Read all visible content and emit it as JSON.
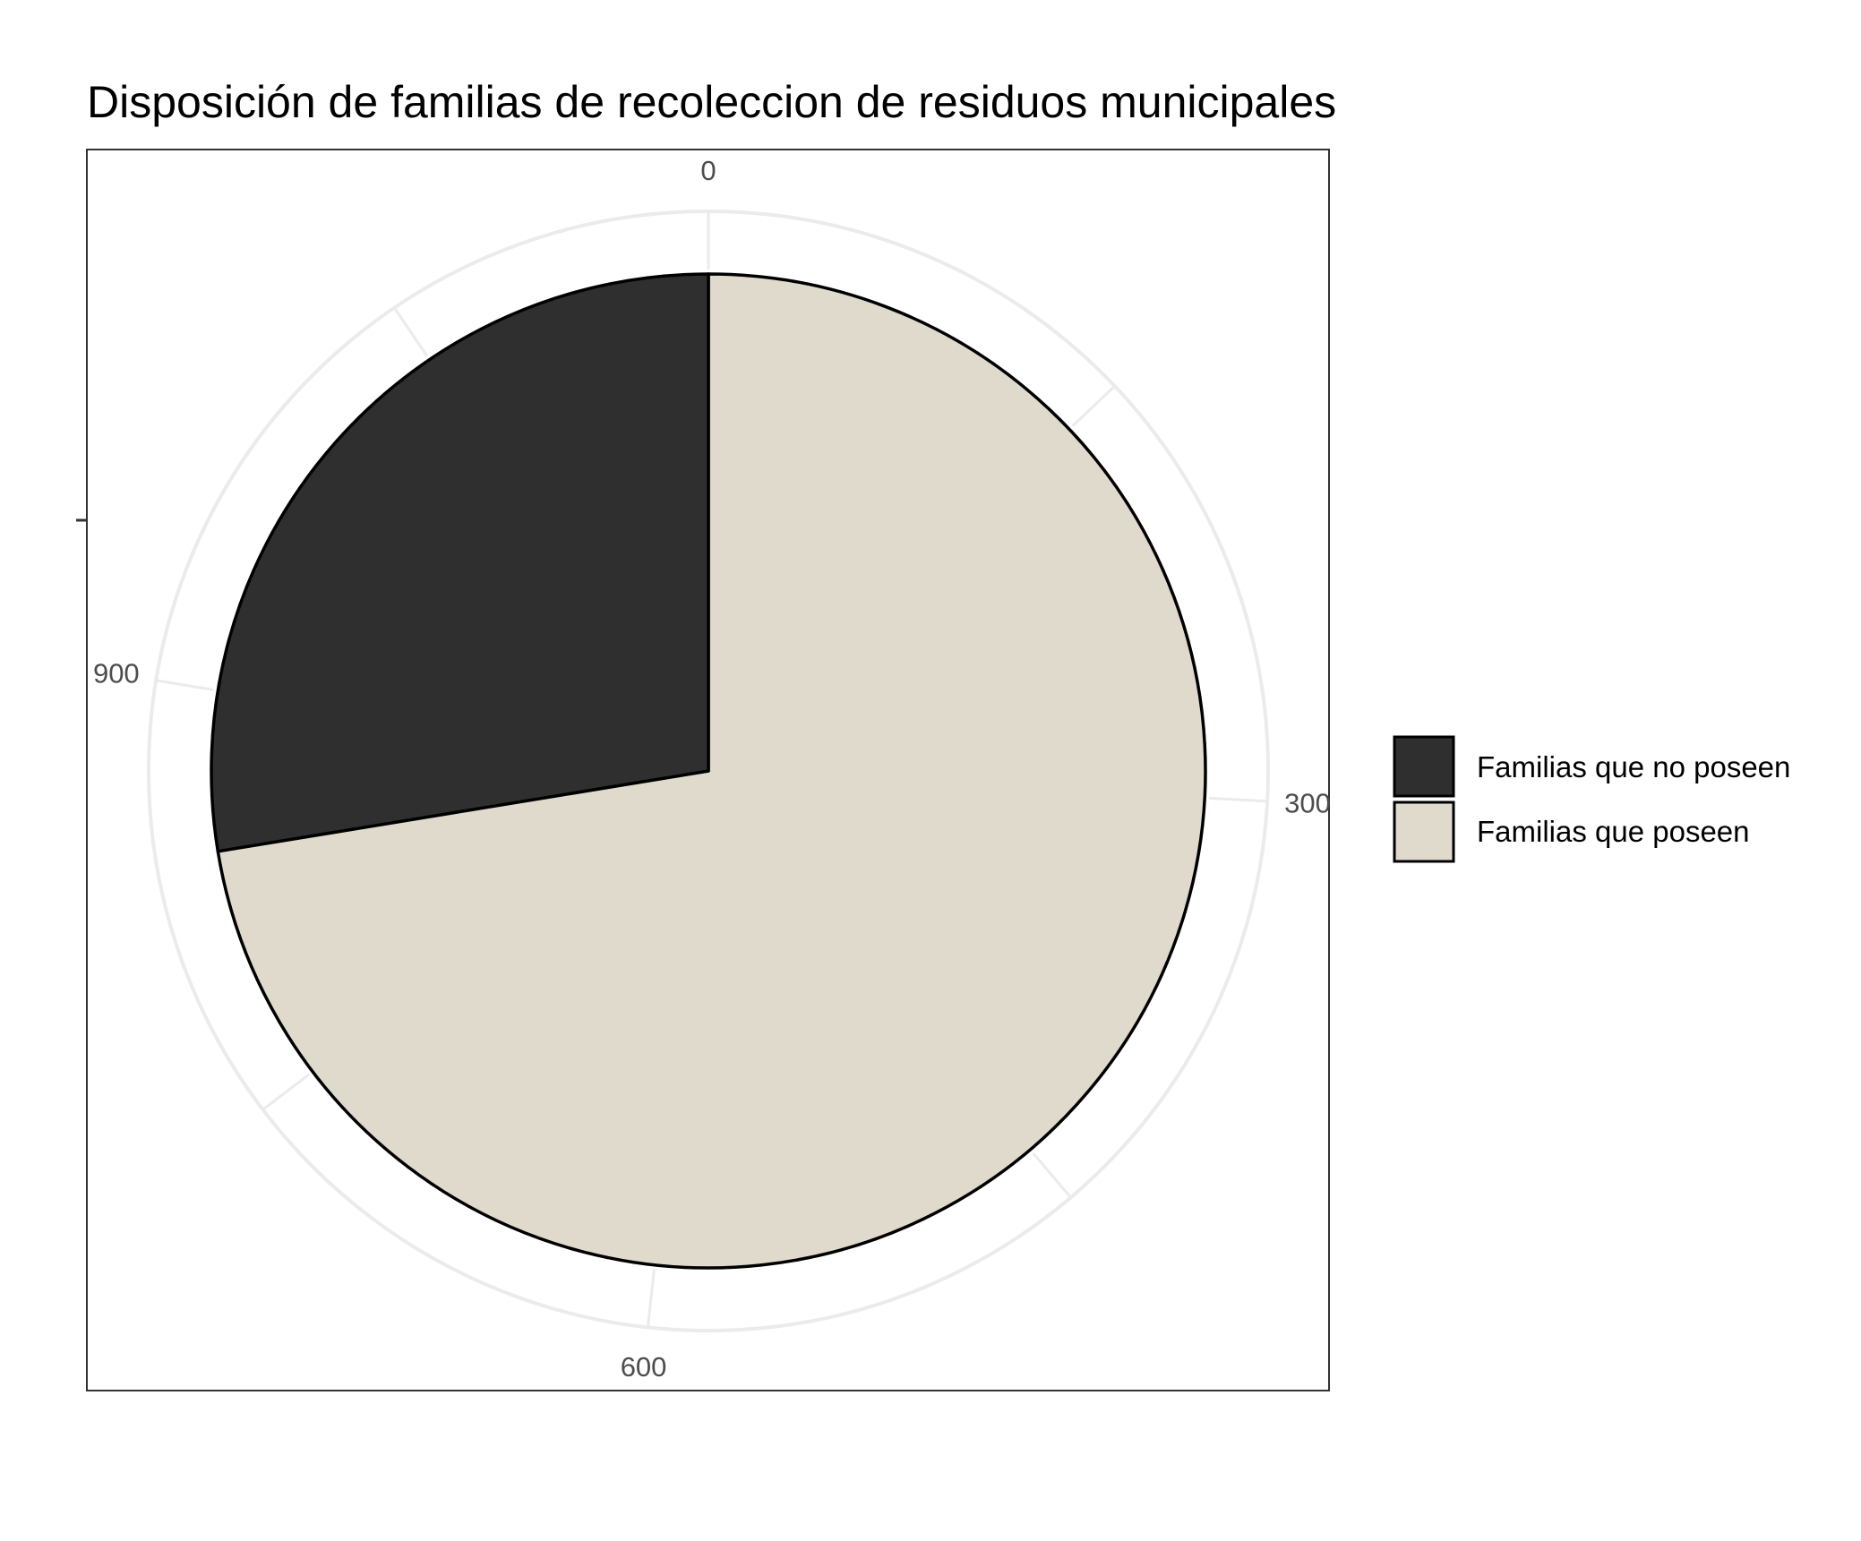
{
  "chart_data": {
    "type": "pie",
    "title": "Disposición de familias de recoleccion de residuos municipales",
    "xlabel": "",
    "ylabel": "",
    "axis_max": 1160,
    "tick_labels": [
      "0",
      "300",
      "600",
      "900"
    ],
    "tick_values": [
      0,
      300,
      600,
      900
    ],
    "slices": [
      {
        "label": "Familias que poseen",
        "value": 840,
        "color": "#dfdacb"
      },
      {
        "label": "Familias que no poseen",
        "value": 320,
        "color": "#2f2f2f"
      }
    ],
    "legend": {
      "position": "right",
      "entries": [
        {
          "label": "Familias que no poseen",
          "color": "#2f2f2f"
        },
        {
          "label": "Familias que poseen",
          "color": "#dfdacb"
        }
      ]
    },
    "grid": true
  }
}
